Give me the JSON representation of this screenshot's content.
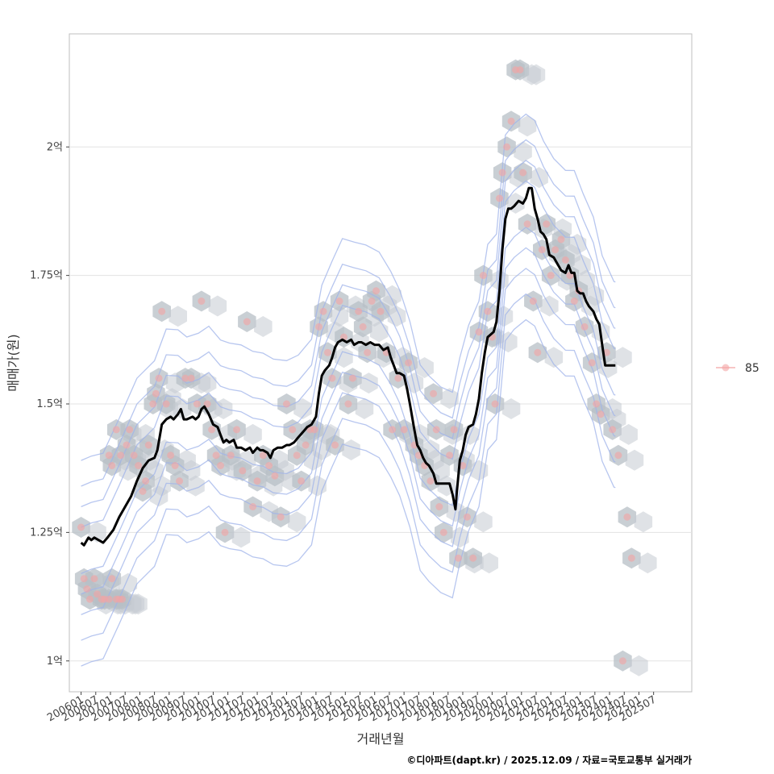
{
  "chart_data": {
    "type": "line",
    "title": "",
    "xlabel": "거래년월",
    "ylabel": "매매가(원)",
    "caption": "©디아파트(dapt.kr) / 2025.12.09 / 자료=국토교통부 실거래가",
    "legend": {
      "position": "right",
      "entries": [
        "85"
      ]
    },
    "ylim": [
      0.94,
      2.22
    ],
    "y_ticks": [
      1.0,
      1.25,
      1.5,
      1.75,
      2.0
    ],
    "y_tick_labels": [
      "1억",
      "1.25억",
      "1.5억",
      "1.75억",
      "2억"
    ],
    "xlim": [
      2005.6,
      2026.8
    ],
    "x_ticks": [
      2006.0,
      2006.5,
      2007.0,
      2007.5,
      2008.0,
      2008.5,
      2009.0,
      2009.5,
      2010.0,
      2010.5,
      2011.0,
      2011.5,
      2012.0,
      2012.5,
      2013.0,
      2013.5,
      2014.0,
      2014.5,
      2015.0,
      2015.5,
      2016.0,
      2016.5,
      2017.0,
      2017.5,
      2018.0,
      2018.5,
      2019.0,
      2019.5,
      2020.0,
      2020.5,
      2021.0,
      2021.5,
      2022.0,
      2022.5,
      2023.0,
      2023.5,
      2024.0,
      2024.5,
      2025.0,
      2025.5
    ],
    "x_tick_labels": [
      "200601",
      "200607",
      "200701",
      "200707",
      "200801",
      "200807",
      "200901",
      "200907",
      "201001",
      "201007",
      "201101",
      "201107",
      "201201",
      "201207",
      "201301",
      "201307",
      "201401",
      "201407",
      "201501",
      "201507",
      "201601",
      "201607",
      "201701",
      "201707",
      "201801",
      "201807",
      "201901",
      "201907",
      "202001",
      "202007",
      "202101",
      "202107",
      "202201",
      "202207",
      "202301",
      "202307",
      "202401",
      "202407",
      "202501",
      "202507"
    ],
    "grid": true,
    "series": [
      {
        "name": "moving-average",
        "color": "#000000",
        "points": [
          [
            2006.0,
            1.23
          ],
          [
            2006.1,
            1.225
          ],
          [
            2006.25,
            1.24
          ],
          [
            2006.35,
            1.235
          ],
          [
            2006.45,
            1.24
          ],
          [
            2006.6,
            1.235
          ],
          [
            2006.75,
            1.23
          ],
          [
            2006.9,
            1.24
          ],
          [
            2007.1,
            1.255
          ],
          [
            2007.3,
            1.28
          ],
          [
            2007.5,
            1.3
          ],
          [
            2007.7,
            1.32
          ],
          [
            2007.9,
            1.35
          ],
          [
            2008.1,
            1.375
          ],
          [
            2008.3,
            1.39
          ],
          [
            2008.5,
            1.395
          ],
          [
            2008.6,
            1.41
          ],
          [
            2008.75,
            1.46
          ],
          [
            2008.9,
            1.47
          ],
          [
            2009.05,
            1.475
          ],
          [
            2009.15,
            1.47
          ],
          [
            2009.3,
            1.48
          ],
          [
            2009.4,
            1.49
          ],
          [
            2009.5,
            1.47
          ],
          [
            2009.6,
            1.47
          ],
          [
            2009.8,
            1.475
          ],
          [
            2009.9,
            1.47
          ],
          [
            2010.0,
            1.475
          ],
          [
            2010.1,
            1.49
          ],
          [
            2010.2,
            1.495
          ],
          [
            2010.35,
            1.48
          ],
          [
            2010.5,
            1.46
          ],
          [
            2010.65,
            1.455
          ],
          [
            2010.75,
            1.44
          ],
          [
            2010.85,
            1.425
          ],
          [
            2010.95,
            1.43
          ],
          [
            2011.05,
            1.425
          ],
          [
            2011.2,
            1.43
          ],
          [
            2011.3,
            1.415
          ],
          [
            2011.45,
            1.415
          ],
          [
            2011.6,
            1.41
          ],
          [
            2011.75,
            1.415
          ],
          [
            2011.85,
            1.405
          ],
          [
            2012.0,
            1.415
          ],
          [
            2012.1,
            1.41
          ],
          [
            2012.2,
            1.41
          ],
          [
            2012.35,
            1.405
          ],
          [
            2012.45,
            1.395
          ],
          [
            2012.55,
            1.41
          ],
          [
            2012.7,
            1.415
          ],
          [
            2012.85,
            1.415
          ],
          [
            2013.0,
            1.42
          ],
          [
            2013.1,
            1.42
          ],
          [
            2013.25,
            1.425
          ],
          [
            2013.4,
            1.435
          ],
          [
            2013.55,
            1.445
          ],
          [
            2013.7,
            1.455
          ],
          [
            2013.85,
            1.46
          ],
          [
            2014.0,
            1.475
          ],
          [
            2014.1,
            1.52
          ],
          [
            2014.2,
            1.555
          ],
          [
            2014.3,
            1.565
          ],
          [
            2014.45,
            1.575
          ],
          [
            2014.55,
            1.59
          ],
          [
            2014.65,
            1.61
          ],
          [
            2014.75,
            1.62
          ],
          [
            2014.9,
            1.625
          ],
          [
            2015.05,
            1.62
          ],
          [
            2015.2,
            1.625
          ],
          [
            2015.3,
            1.615
          ],
          [
            2015.45,
            1.62
          ],
          [
            2015.55,
            1.62
          ],
          [
            2015.7,
            1.615
          ],
          [
            2015.85,
            1.62
          ],
          [
            2016.0,
            1.615
          ],
          [
            2016.15,
            1.615
          ],
          [
            2016.3,
            1.605
          ],
          [
            2016.45,
            1.61
          ],
          [
            2016.55,
            1.59
          ],
          [
            2016.65,
            1.575
          ],
          [
            2016.75,
            1.56
          ],
          [
            2016.85,
            1.56
          ],
          [
            2017.0,
            1.555
          ],
          [
            2017.1,
            1.53
          ],
          [
            2017.2,
            1.5
          ],
          [
            2017.35,
            1.45
          ],
          [
            2017.45,
            1.42
          ],
          [
            2017.55,
            1.41
          ],
          [
            2017.65,
            1.395
          ],
          [
            2017.75,
            1.385
          ],
          [
            2017.85,
            1.38
          ],
          [
            2018.0,
            1.365
          ],
          [
            2018.1,
            1.345
          ],
          [
            2018.25,
            1.345
          ],
          [
            2018.4,
            1.345
          ],
          [
            2018.55,
            1.345
          ],
          [
            2018.65,
            1.325
          ],
          [
            2018.75,
            1.295
          ],
          [
            2018.8,
            1.33
          ],
          [
            2018.9,
            1.39
          ],
          [
            2019.0,
            1.41
          ],
          [
            2019.1,
            1.44
          ],
          [
            2019.2,
            1.455
          ],
          [
            2019.35,
            1.46
          ],
          [
            2019.45,
            1.48
          ],
          [
            2019.55,
            1.51
          ],
          [
            2019.65,
            1.56
          ],
          [
            2019.75,
            1.6
          ],
          [
            2019.85,
            1.63
          ],
          [
            2019.95,
            1.635
          ],
          [
            2020.05,
            1.64
          ],
          [
            2020.15,
            1.66
          ],
          [
            2020.25,
            1.72
          ],
          [
            2020.35,
            1.8
          ],
          [
            2020.45,
            1.86
          ],
          [
            2020.55,
            1.88
          ],
          [
            2020.65,
            1.88
          ],
          [
            2020.75,
            1.885
          ],
          [
            2020.9,
            1.895
          ],
          [
            2021.05,
            1.89
          ],
          [
            2021.15,
            1.9
          ],
          [
            2021.25,
            1.92
          ],
          [
            2021.35,
            1.92
          ],
          [
            2021.45,
            1.88
          ],
          [
            2021.55,
            1.86
          ],
          [
            2021.65,
            1.835
          ],
          [
            2021.75,
            1.83
          ],
          [
            2021.85,
            1.82
          ],
          [
            2021.95,
            1.79
          ],
          [
            2022.1,
            1.785
          ],
          [
            2022.25,
            1.77
          ],
          [
            2022.35,
            1.76
          ],
          [
            2022.5,
            1.755
          ],
          [
            2022.6,
            1.77
          ],
          [
            2022.7,
            1.755
          ],
          [
            2022.8,
            1.755
          ],
          [
            2022.9,
            1.72
          ],
          [
            2023.0,
            1.715
          ],
          [
            2023.1,
            1.715
          ],
          [
            2023.2,
            1.7
          ],
          [
            2023.3,
            1.69
          ],
          [
            2023.45,
            1.68
          ],
          [
            2023.55,
            1.665
          ],
          [
            2023.65,
            1.655
          ],
          [
            2023.75,
            1.615
          ],
          [
            2023.85,
            1.575
          ],
          [
            2024.0,
            1.575
          ],
          [
            2024.15,
            1.575
          ],
          [
            2024.2,
            1.575
          ]
        ]
      },
      {
        "name": "85",
        "type": "scatter",
        "color": "#f4a4a4",
        "points": [
          [
            2006.0,
            1.26
          ],
          [
            2006.1,
            1.16
          ],
          [
            2006.2,
            1.14
          ],
          [
            2006.3,
            1.12
          ],
          [
            2006.45,
            1.16
          ],
          [
            2006.55,
            1.13
          ],
          [
            2006.7,
            1.12
          ],
          [
            2006.8,
            1.12
          ],
          [
            2006.95,
            1.12
          ],
          [
            2007.05,
            1.16
          ],
          [
            2007.2,
            1.12
          ],
          [
            2007.3,
            1.12
          ],
          [
            2007.4,
            1.12
          ],
          [
            2006.95,
            1.4
          ],
          [
            2007.05,
            1.38
          ],
          [
            2007.2,
            1.45
          ],
          [
            2007.35,
            1.4
          ],
          [
            2007.55,
            1.42
          ],
          [
            2007.65,
            1.45
          ],
          [
            2007.8,
            1.4
          ],
          [
            2007.95,
            1.38
          ],
          [
            2008.1,
            1.33
          ],
          [
            2008.2,
            1.35
          ],
          [
            2008.3,
            1.42
          ],
          [
            2008.45,
            1.5
          ],
          [
            2008.55,
            1.52
          ],
          [
            2008.65,
            1.55
          ],
          [
            2008.75,
            1.68
          ],
          [
            2008.9,
            1.5
          ],
          [
            2009.05,
            1.4
          ],
          [
            2009.2,
            1.38
          ],
          [
            2009.35,
            1.35
          ],
          [
            2009.55,
            1.55
          ],
          [
            2009.75,
            1.55
          ],
          [
            2009.95,
            1.5
          ],
          [
            2010.1,
            1.7
          ],
          [
            2010.3,
            1.5
          ],
          [
            2010.45,
            1.45
          ],
          [
            2010.6,
            1.4
          ],
          [
            2010.75,
            1.38
          ],
          [
            2010.9,
            1.25
          ],
          [
            2011.1,
            1.4
          ],
          [
            2011.3,
            1.45
          ],
          [
            2011.5,
            1.37
          ],
          [
            2011.65,
            1.66
          ],
          [
            2011.85,
            1.3
          ],
          [
            2012.0,
            1.35
          ],
          [
            2012.2,
            1.4
          ],
          [
            2012.4,
            1.38
          ],
          [
            2012.6,
            1.36
          ],
          [
            2012.8,
            1.28
          ],
          [
            2013.0,
            1.5
          ],
          [
            2013.2,
            1.45
          ],
          [
            2013.35,
            1.4
          ],
          [
            2013.5,
            1.35
          ],
          [
            2013.65,
            1.42
          ],
          [
            2013.8,
            1.45
          ],
          [
            2013.95,
            1.45
          ],
          [
            2014.1,
            1.65
          ],
          [
            2014.25,
            1.68
          ],
          [
            2014.4,
            1.6
          ],
          [
            2014.55,
            1.55
          ],
          [
            2014.65,
            1.42
          ],
          [
            2014.8,
            1.7
          ],
          [
            2014.95,
            1.63
          ],
          [
            2015.1,
            1.5
          ],
          [
            2015.25,
            1.55
          ],
          [
            2015.45,
            1.68
          ],
          [
            2015.6,
            1.65
          ],
          [
            2015.75,
            1.6
          ],
          [
            2015.9,
            1.7
          ],
          [
            2016.05,
            1.72
          ],
          [
            2016.2,
            1.68
          ],
          [
            2016.4,
            1.6
          ],
          [
            2016.6,
            1.45
          ],
          [
            2016.8,
            1.55
          ],
          [
            2017.0,
            1.45
          ],
          [
            2017.15,
            1.58
          ],
          [
            2017.35,
            1.42
          ],
          [
            2017.5,
            1.4
          ],
          [
            2017.7,
            1.38
          ],
          [
            2017.9,
            1.35
          ],
          [
            2018.0,
            1.52
          ],
          [
            2018.1,
            1.45
          ],
          [
            2018.2,
            1.3
          ],
          [
            2018.35,
            1.25
          ],
          [
            2018.55,
            1.4
          ],
          [
            2018.7,
            1.45
          ],
          [
            2018.85,
            1.2
          ],
          [
            2019.0,
            1.38
          ],
          [
            2019.15,
            1.28
          ],
          [
            2019.35,
            1.2
          ],
          [
            2019.55,
            1.64
          ],
          [
            2019.7,
            1.75
          ],
          [
            2019.85,
            1.68
          ],
          [
            2020.0,
            1.63
          ],
          [
            2020.1,
            1.5
          ],
          [
            2020.25,
            1.9
          ],
          [
            2020.35,
            1.95
          ],
          [
            2020.5,
            2.0
          ],
          [
            2020.65,
            2.05
          ],
          [
            2020.8,
            2.15
          ],
          [
            2020.95,
            2.15
          ],
          [
            2021.05,
            1.95
          ],
          [
            2021.2,
            1.85
          ],
          [
            2021.4,
            1.7
          ],
          [
            2021.55,
            1.6
          ],
          [
            2021.7,
            1.8
          ],
          [
            2021.85,
            1.85
          ],
          [
            2022.0,
            1.75
          ],
          [
            2022.15,
            1.8
          ],
          [
            2022.35,
            1.82
          ],
          [
            2022.5,
            1.78
          ],
          [
            2022.65,
            1.75
          ],
          [
            2022.8,
            1.7
          ],
          [
            2022.95,
            1.72
          ],
          [
            2023.15,
            1.65
          ],
          [
            2023.4,
            1.58
          ],
          [
            2023.55,
            1.5
          ],
          [
            2023.7,
            1.48
          ],
          [
            2023.9,
            1.6
          ],
          [
            2024.1,
            1.45
          ],
          [
            2024.3,
            1.4
          ],
          [
            2024.45,
            1.0
          ],
          [
            2024.6,
            1.28
          ],
          [
            2024.75,
            1.2
          ]
        ]
      }
    ]
  }
}
